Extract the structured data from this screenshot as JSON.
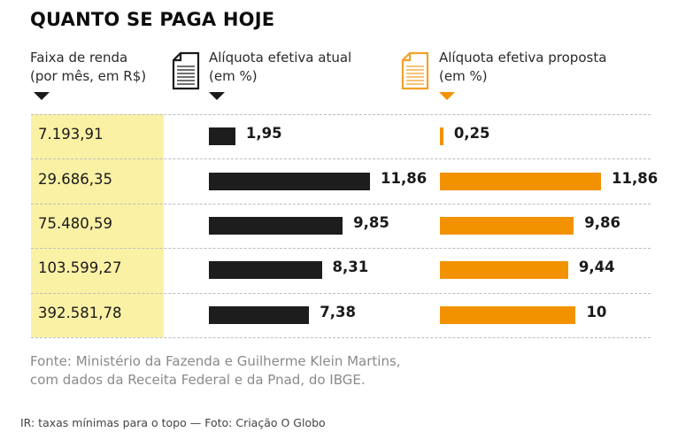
{
  "title": "QUANTO SE PAGA HOJE",
  "headers": {
    "income": [
      "Faixa de renda",
      "(por mês, em R$)"
    ],
    "current": [
      "Alíquota efetiva atual",
      "(em %)"
    ],
    "proposed": [
      "Alíquota efetiva proposta",
      "(em %)"
    ]
  },
  "icons": {
    "current": "document-icon",
    "proposed": "document-icon-orange"
  },
  "colors": {
    "current": "#1d1d1d",
    "proposed": "#f39200",
    "income_bg": "#fbf1a5"
  },
  "chart_data": {
    "type": "bar",
    "title": "QUANTO SE PAGA HOJE",
    "xlabel": "Alíquota efetiva (em %)",
    "ylabel": "Faixa de renda (por mês, em R$)",
    "categories": [
      "7.193,91",
      "29.686,35",
      "75.480,59",
      "103.599,27",
      "392.581,78"
    ],
    "series": [
      {
        "name": "Alíquota efetiva atual (em %)",
        "values": [
          1.95,
          11.86,
          9.85,
          8.31,
          7.38
        ],
        "labels": [
          "1,95",
          "11,86",
          "9,85",
          "8,31",
          "7,38"
        ]
      },
      {
        "name": "Alíquota efetiva proposta (em %)",
        "values": [
          0.25,
          11.86,
          9.86,
          9.44,
          10
        ],
        "labels": [
          "0,25",
          "11,86",
          "9,86",
          "9,44",
          "10"
        ]
      }
    ],
    "xlim": [
      0,
      11.86
    ],
    "grid": false,
    "orientation": "horizontal"
  },
  "source": [
    "Fonte: Ministério da Fazenda e Guilherme Klein Martins,",
    "com dados da Receita Federal e da Pnad, do IBGE."
  ],
  "caption": "IR: taxas mínimas para o topo — Foto: Criação O Globo"
}
